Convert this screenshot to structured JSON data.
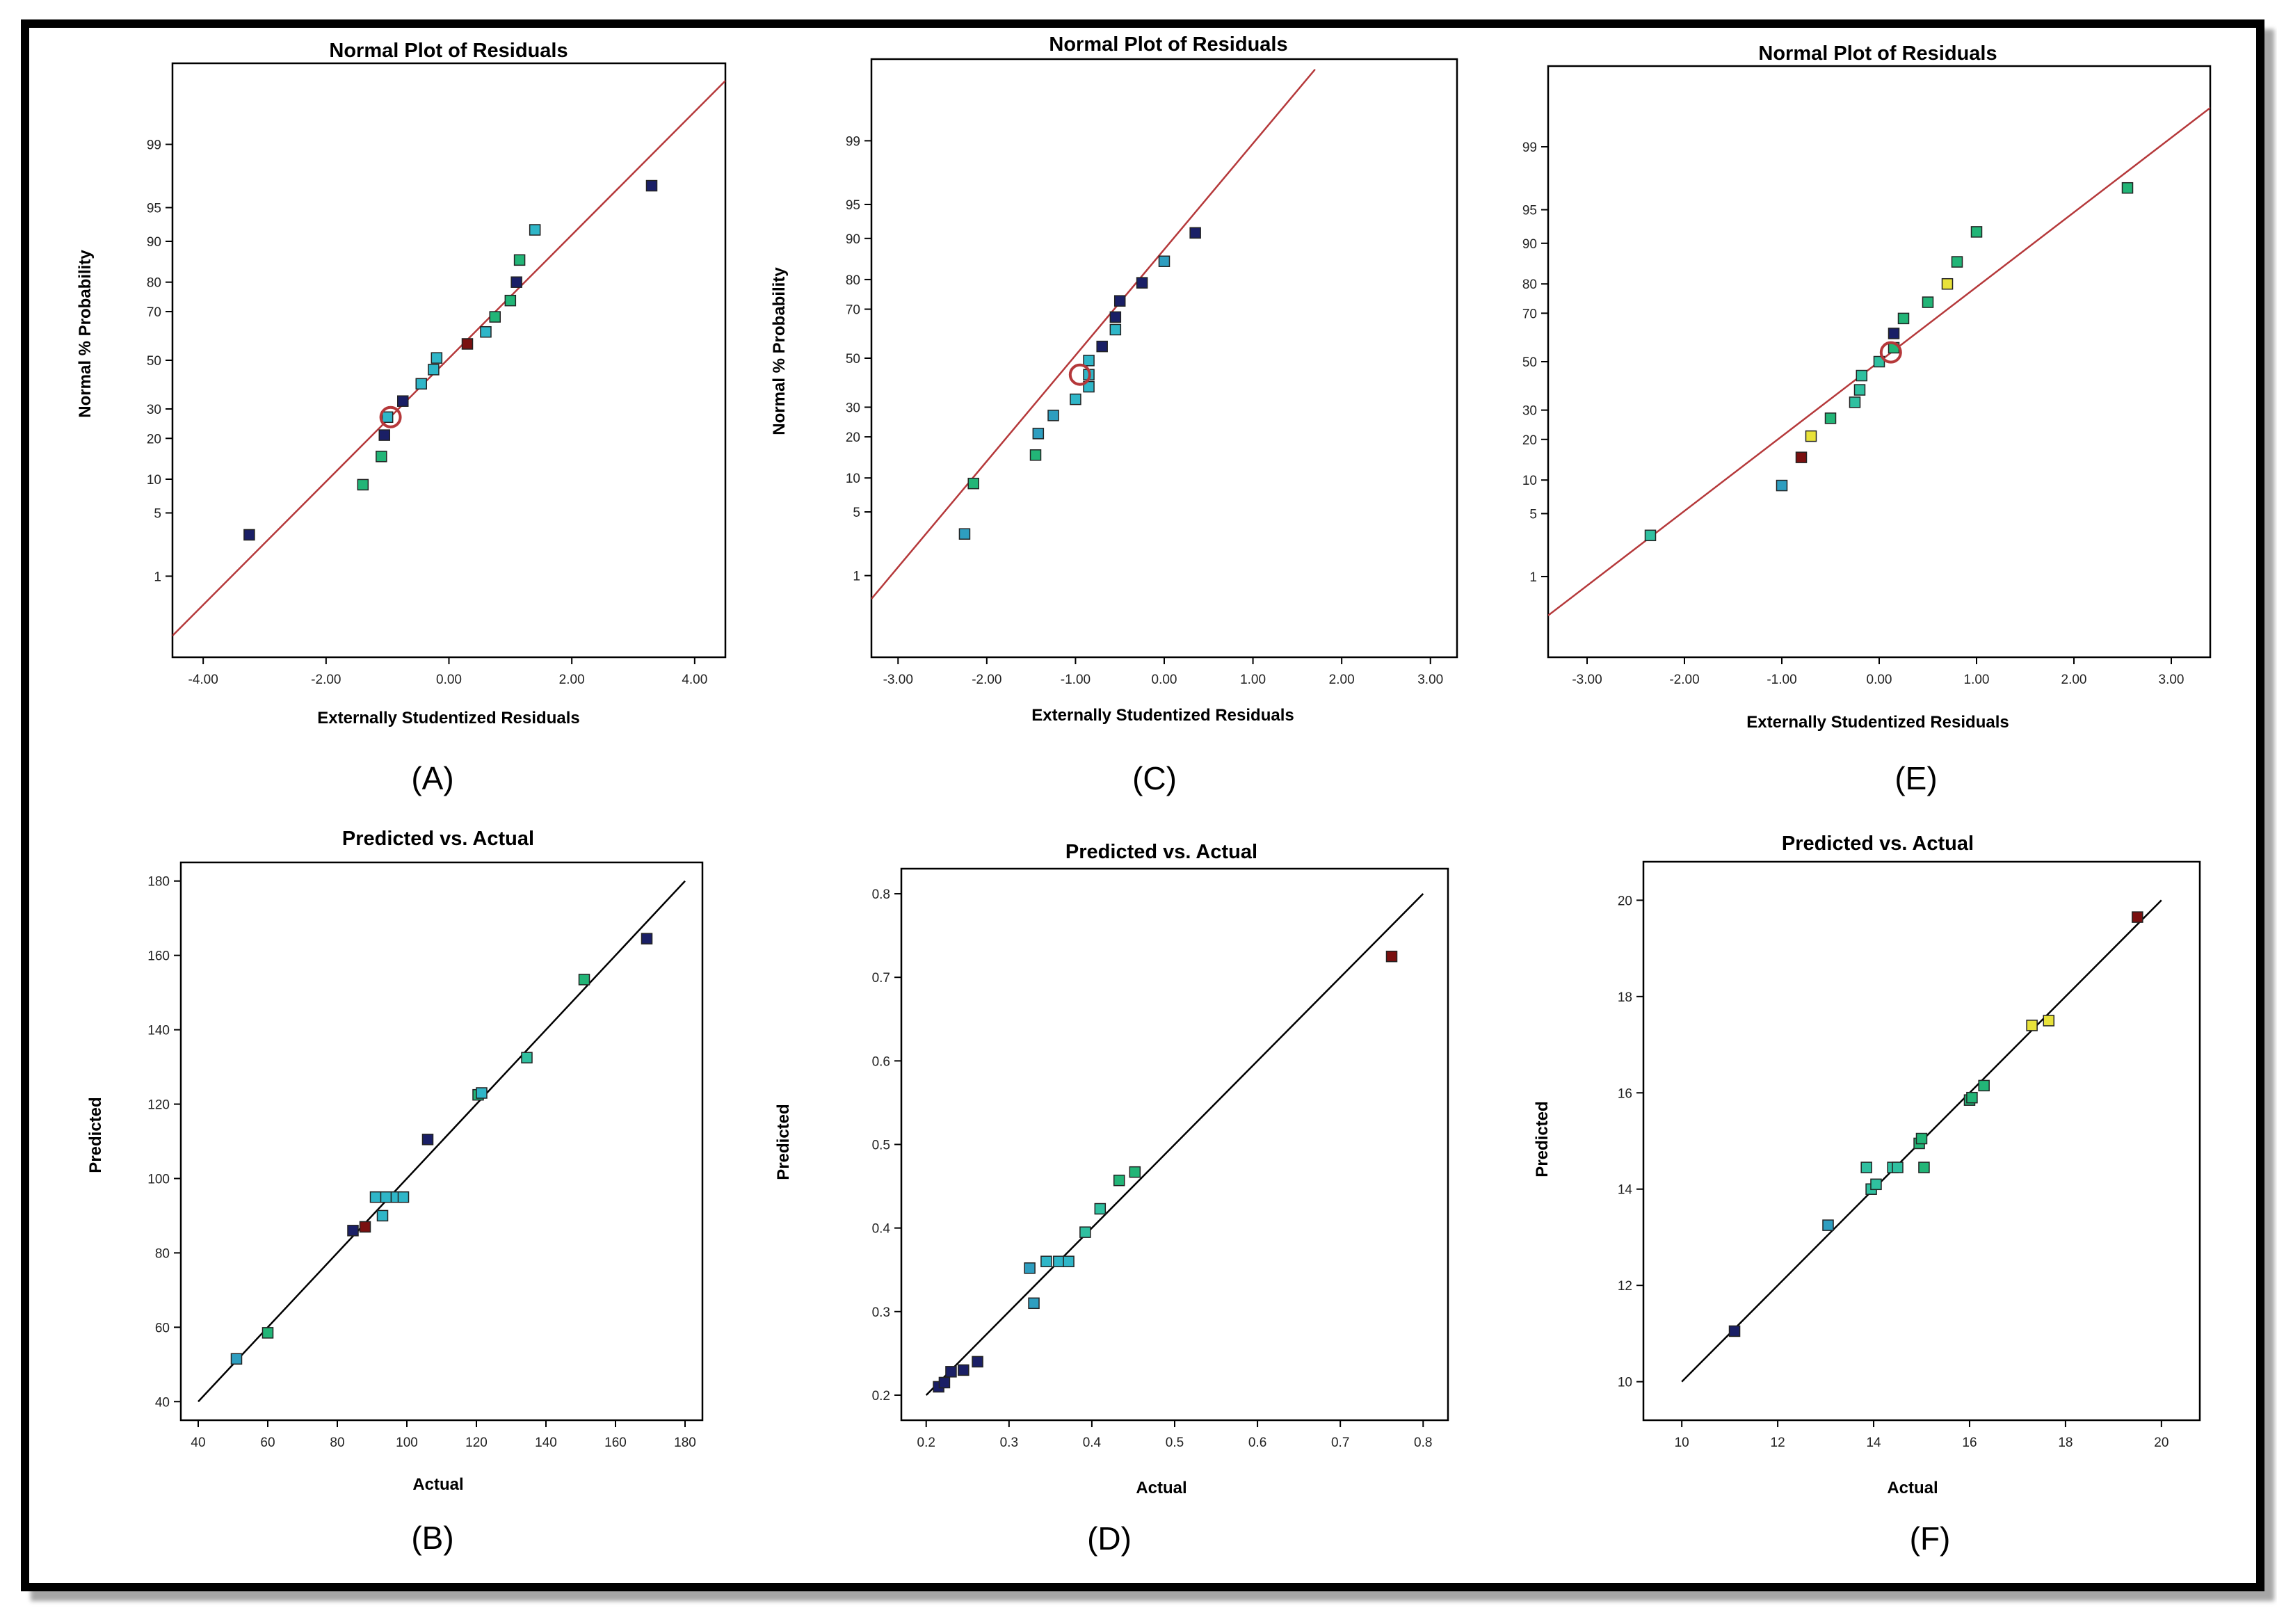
{
  "chart_data": [
    {
      "id": "A",
      "type": "scatter",
      "panel_label": "(A)",
      "title": "Normal Plot of Residuals",
      "xlabel": "Externally Studentized Residuals",
      "ylabel": "Normal % Probability",
      "xlim": [
        -4.5,
        4.5
      ],
      "xticks": [
        -4,
        -2,
        0,
        2,
        4
      ],
      "xtick_labels": [
        "-4.00",
        "-2.00",
        "0.00",
        "2.00",
        "4.00"
      ],
      "yscale": "normal-probability",
      "yticks": [
        1,
        5,
        10,
        20,
        30,
        50,
        70,
        80,
        90,
        95,
        99
      ],
      "ytick_labels": [
        "1",
        "5",
        "10",
        "20",
        "30",
        "50",
        "70",
        "80",
        "90",
        "95",
        "99"
      ],
      "points": [
        {
          "x": -3.25,
          "y": 3,
          "color": "#1a1f66"
        },
        {
          "x": -1.4,
          "y": 9,
          "color": "#22b577"
        },
        {
          "x": -1.1,
          "y": 15,
          "color": "#22b577"
        },
        {
          "x": -1.05,
          "y": 21,
          "color": "#1a1f66"
        },
        {
          "x": -1.0,
          "y": 27,
          "color": "#2fb6c8"
        },
        {
          "x": -0.75,
          "y": 33,
          "color": "#1a1f66"
        },
        {
          "x": -0.45,
          "y": 40,
          "color": "#2fb6c8"
        },
        {
          "x": -0.25,
          "y": 46,
          "color": "#2fb6c8"
        },
        {
          "x": -0.2,
          "y": 51,
          "color": "#2fb6c8"
        },
        {
          "x": 0.3,
          "y": 57,
          "color": "#7a1010"
        },
        {
          "x": 0.6,
          "y": 62,
          "color": "#2fb6c8"
        },
        {
          "x": 0.75,
          "y": 68,
          "color": "#22b577"
        },
        {
          "x": 1.0,
          "y": 74,
          "color": "#22b577"
        },
        {
          "x": 1.1,
          "y": 80,
          "color": "#1a1f66"
        },
        {
          "x": 1.15,
          "y": 86,
          "color": "#22b577"
        },
        {
          "x": 1.4,
          "y": 92,
          "color": "#2fb6c8"
        },
        {
          "x": 3.3,
          "y": 97,
          "color": "#1a1f66"
        }
      ],
      "highlight": {
        "x": -0.95,
        "y": 27
      },
      "line": {
        "x": [
          -4.5,
          4.5
        ],
        "y": [
          0.15,
          99.87
        ]
      }
    },
    {
      "id": "C",
      "type": "scatter",
      "panel_label": "(C)",
      "title": "Normal Plot of Residuals",
      "xlabel": "Externally Studentized Residuals",
      "ylabel": "Normal % Probability",
      "xlim": [
        -3.3,
        3.3
      ],
      "xticks": [
        -3,
        -2,
        -1,
        0,
        1,
        2,
        3
      ],
      "xtick_labels": [
        "-3.00",
        "-2.00",
        "-1.00",
        "0.00",
        "1.00",
        "2.00",
        "3.00"
      ],
      "yscale": "normal-probability",
      "yticks": [
        1,
        5,
        10,
        20,
        30,
        50,
        70,
        80,
        90,
        95,
        99
      ],
      "ytick_labels": [
        "1",
        "5",
        "10",
        "20",
        "30",
        "50",
        "70",
        "80",
        "90",
        "95",
        "99"
      ],
      "points": [
        {
          "x": -2.25,
          "y": 3,
          "color": "#2e9ec0"
        },
        {
          "x": -2.15,
          "y": 9,
          "color": "#22b577"
        },
        {
          "x": -1.45,
          "y": 15,
          "color": "#22b577"
        },
        {
          "x": -1.42,
          "y": 21,
          "color": "#2e9ec0"
        },
        {
          "x": -1.25,
          "y": 27,
          "color": "#2e9ec0"
        },
        {
          "x": -1.0,
          "y": 33,
          "color": "#2fb6c8"
        },
        {
          "x": -0.85,
          "y": 38,
          "color": "#2fb6c8"
        },
        {
          "x": -0.85,
          "y": 43,
          "color": "#2fb6c8"
        },
        {
          "x": -0.85,
          "y": 49,
          "color": "#2fb6c8"
        },
        {
          "x": -0.7,
          "y": 55,
          "color": "#1a1f66"
        },
        {
          "x": -0.55,
          "y": 62,
          "color": "#2fb6c8"
        },
        {
          "x": -0.55,
          "y": 67,
          "color": "#1a1f66"
        },
        {
          "x": -0.5,
          "y": 73,
          "color": "#1a1f66"
        },
        {
          "x": -0.25,
          "y": 79,
          "color": "#1a1f66"
        },
        {
          "x": 0.0,
          "y": 85,
          "color": "#2e9ec0"
        },
        {
          "x": 0.35,
          "y": 91,
          "color": "#1a1f66"
        }
      ],
      "highlight": {
        "x": -0.95,
        "y": 43
      },
      "line": {
        "x": [
          -3.3,
          1.7
        ],
        "y": [
          0.5,
          99.9
        ]
      }
    },
    {
      "id": "E",
      "type": "scatter",
      "panel_label": "(E)",
      "title": "Normal Plot of Residuals",
      "xlabel": "Externally Studentized Residuals",
      "ylabel": "",
      "xlim": [
        -3.4,
        3.4
      ],
      "xticks": [
        -3,
        -2,
        -1,
        0,
        1,
        2,
        3
      ],
      "xtick_labels": [
        "-3.00",
        "-2.00",
        "-1.00",
        "0.00",
        "1.00",
        "2.00",
        "3.00"
      ],
      "yscale": "normal-probability",
      "yticks": [
        1,
        5,
        10,
        20,
        30,
        50,
        70,
        80,
        90,
        95,
        99
      ],
      "ytick_labels": [
        "1",
        "5",
        "10",
        "20",
        "30",
        "50",
        "70",
        "80",
        "90",
        "95",
        "99"
      ],
      "points": [
        {
          "x": -2.35,
          "y": 3,
          "color": "#2fc0a0"
        },
        {
          "x": -1.0,
          "y": 9,
          "color": "#2e9ec0"
        },
        {
          "x": -0.8,
          "y": 15,
          "color": "#7a1010"
        },
        {
          "x": -0.7,
          "y": 21,
          "color": "#e8e23a"
        },
        {
          "x": -0.5,
          "y": 27,
          "color": "#22b577"
        },
        {
          "x": -0.25,
          "y": 33,
          "color": "#2fc0a0"
        },
        {
          "x": -0.2,
          "y": 38,
          "color": "#2fc0a0"
        },
        {
          "x": -0.18,
          "y": 44,
          "color": "#2fc0a0"
        },
        {
          "x": 0.0,
          "y": 50,
          "color": "#2fc0a0"
        },
        {
          "x": 0.15,
          "y": 56,
          "color": "#22b577"
        },
        {
          "x": 0.15,
          "y": 62,
          "color": "#1a1f66"
        },
        {
          "x": 0.25,
          "y": 68,
          "color": "#22b577"
        },
        {
          "x": 0.5,
          "y": 74,
          "color": "#22b577"
        },
        {
          "x": 0.7,
          "y": 80,
          "color": "#e8e23a"
        },
        {
          "x": 0.8,
          "y": 86,
          "color": "#22b577"
        },
        {
          "x": 1.0,
          "y": 92,
          "color": "#22b577"
        },
        {
          "x": 2.55,
          "y": 97,
          "color": "#22b577"
        }
      ],
      "highlight": {
        "x": 0.12,
        "y": 54
      },
      "line": {
        "x": [
          -3.4,
          3.4
        ],
        "y": [
          0.3,
          99.7
        ]
      }
    },
    {
      "id": "B",
      "type": "scatter",
      "panel_label": "(B)",
      "title": "Predicted vs. Actual",
      "xlabel": "Actual",
      "ylabel": "Predicted",
      "xlim": [
        35,
        185
      ],
      "ylim": [
        35,
        185
      ],
      "xticks": [
        40,
        60,
        80,
        100,
        120,
        140,
        160,
        180
      ],
      "xtick_labels": [
        "40",
        "60",
        "80",
        "100",
        "120",
        "140",
        "160",
        "180"
      ],
      "yticks": [
        40,
        60,
        80,
        100,
        120,
        140,
        160,
        180
      ],
      "ytick_labels": [
        "40",
        "60",
        "80",
        "100",
        "120",
        "140",
        "160",
        "180"
      ],
      "points": [
        {
          "x": 51,
          "y": 51.5,
          "color": "#2e9ec0"
        },
        {
          "x": 60,
          "y": 58.5,
          "color": "#22b577"
        },
        {
          "x": 84.5,
          "y": 86,
          "color": "#1a1f66"
        },
        {
          "x": 88,
          "y": 87,
          "color": "#7a1010"
        },
        {
          "x": 91,
          "y": 95,
          "color": "#2fb6c8"
        },
        {
          "x": 93,
          "y": 90,
          "color": "#2fb6c8"
        },
        {
          "x": 94,
          "y": 95,
          "color": "#2fb6c8"
        },
        {
          "x": 97,
          "y": 95,
          "color": "#2fb6c8"
        },
        {
          "x": 99,
          "y": 95,
          "color": "#2fb6c8"
        },
        {
          "x": 106,
          "y": 110.5,
          "color": "#1a1f66"
        },
        {
          "x": 120.5,
          "y": 122.5,
          "color": "#22b577"
        },
        {
          "x": 121.5,
          "y": 123,
          "color": "#2fb6c8"
        },
        {
          "x": 134.5,
          "y": 132.5,
          "color": "#2fc0a0"
        },
        {
          "x": 151,
          "y": 153.5,
          "color": "#22b577"
        },
        {
          "x": 169,
          "y": 164.5,
          "color": "#1a1f66"
        }
      ],
      "line": {
        "x": [
          40,
          180
        ],
        "y": [
          40,
          180
        ]
      }
    },
    {
      "id": "D",
      "type": "scatter",
      "panel_label": "(D)",
      "title": "Predicted vs. Actual",
      "xlabel": "Actual",
      "ylabel": "Predicted",
      "xlim": [
        0.17,
        0.83
      ],
      "ylim": [
        0.17,
        0.83
      ],
      "xticks": [
        0.2,
        0.3,
        0.4,
        0.5,
        0.6,
        0.7,
        0.8
      ],
      "xtick_labels": [
        "0.2",
        "0.3",
        "0.4",
        "0.5",
        "0.6",
        "0.7",
        "0.8"
      ],
      "yticks": [
        0.2,
        0.3,
        0.4,
        0.5,
        0.6,
        0.7,
        0.8
      ],
      "ytick_labels": [
        "0.2",
        "0.3",
        "0.4",
        "0.5",
        "0.6",
        "0.7",
        "0.8"
      ],
      "points": [
        {
          "x": 0.215,
          "y": 0.21,
          "color": "#1a1f66"
        },
        {
          "x": 0.222,
          "y": 0.215,
          "color": "#1a1f66"
        },
        {
          "x": 0.23,
          "y": 0.228,
          "color": "#1a1f66"
        },
        {
          "x": 0.245,
          "y": 0.23,
          "color": "#1a1f66"
        },
        {
          "x": 0.262,
          "y": 0.24,
          "color": "#1a1f66"
        },
        {
          "x": 0.325,
          "y": 0.352,
          "color": "#2e9ec0"
        },
        {
          "x": 0.33,
          "y": 0.31,
          "color": "#2e9ec0"
        },
        {
          "x": 0.345,
          "y": 0.36,
          "color": "#2fb6c8"
        },
        {
          "x": 0.36,
          "y": 0.36,
          "color": "#2fb6c8"
        },
        {
          "x": 0.372,
          "y": 0.36,
          "color": "#2fb6c8"
        },
        {
          "x": 0.392,
          "y": 0.395,
          "color": "#2fc0a0"
        },
        {
          "x": 0.41,
          "y": 0.423,
          "color": "#2fc0a0"
        },
        {
          "x": 0.433,
          "y": 0.457,
          "color": "#22b577"
        },
        {
          "x": 0.452,
          "y": 0.467,
          "color": "#22b577"
        },
        {
          "x": 0.762,
          "y": 0.725,
          "color": "#7a1010"
        }
      ],
      "line": {
        "x": [
          0.2,
          0.8
        ],
        "y": [
          0.2,
          0.8
        ]
      }
    },
    {
      "id": "F",
      "type": "scatter",
      "panel_label": "(F)",
      "title": "Predicted vs. Actual",
      "xlabel": "Actual",
      "ylabel": "Predicted",
      "xlim": [
        9.2,
        20.8
      ],
      "ylim": [
        9.2,
        20.8
      ],
      "xticks": [
        10,
        12,
        14,
        16,
        18,
        20
      ],
      "xtick_labels": [
        "10",
        "12",
        "14",
        "16",
        "18",
        "20"
      ],
      "yticks": [
        10,
        12,
        14,
        16,
        18,
        20
      ],
      "ytick_labels": [
        "10",
        "12",
        "14",
        "16",
        "18",
        "20"
      ],
      "points": [
        {
          "x": 11.1,
          "y": 11.05,
          "color": "#1a1f66"
        },
        {
          "x": 13.05,
          "y": 13.25,
          "color": "#2e9ec0"
        },
        {
          "x": 13.85,
          "y": 14.45,
          "color": "#2fc0a0"
        },
        {
          "x": 13.95,
          "y": 14.0,
          "color": "#2fc0a0"
        },
        {
          "x": 14.05,
          "y": 14.1,
          "color": "#2fc0a0"
        },
        {
          "x": 14.4,
          "y": 14.45,
          "color": "#2fc0a0"
        },
        {
          "x": 14.5,
          "y": 14.45,
          "color": "#2fc0a0"
        },
        {
          "x": 14.95,
          "y": 14.95,
          "color": "#22b577"
        },
        {
          "x": 15.0,
          "y": 15.05,
          "color": "#22b577"
        },
        {
          "x": 15.05,
          "y": 14.45,
          "color": "#22b577"
        },
        {
          "x": 16.0,
          "y": 15.85,
          "color": "#22b577"
        },
        {
          "x": 16.05,
          "y": 15.9,
          "color": "#22b577"
        },
        {
          "x": 16.3,
          "y": 16.15,
          "color": "#22b577"
        },
        {
          "x": 17.3,
          "y": 17.4,
          "color": "#e8e23a"
        },
        {
          "x": 17.65,
          "y": 17.5,
          "color": "#e8e23a"
        },
        {
          "x": 19.5,
          "y": 19.65,
          "color": "#7a1010"
        }
      ],
      "line": {
        "x": [
          10,
          20
        ],
        "y": [
          10,
          20
        ]
      }
    }
  ],
  "colors": {
    "fit_line_residuals": "#b5383a",
    "fit_line_parity": "#000000",
    "marker_border": "#222222"
  }
}
